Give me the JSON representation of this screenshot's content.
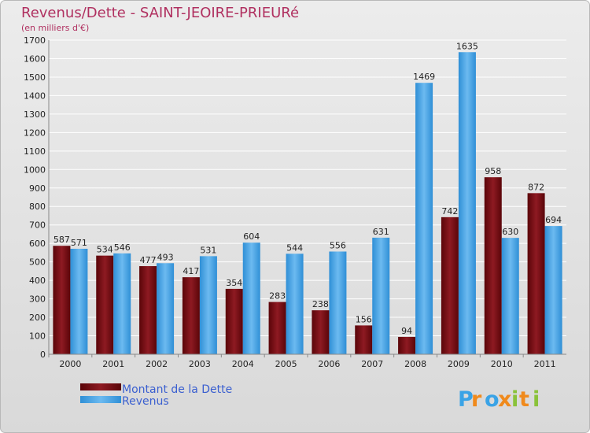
{
  "chart_data": {
    "type": "bar",
    "title": "Revenus/Dette - SAINT-JEOIRE-PRIEURé",
    "subtitle": "(en milliers d'€)",
    "categories": [
      "2000",
      "2001",
      "2002",
      "2003",
      "2004",
      "2005",
      "2006",
      "2007",
      "2008",
      "2009",
      "2010",
      "2011"
    ],
    "series": [
      {
        "name": "Montant de la Dette",
        "values": [
          587,
          534,
          477,
          417,
          354,
          283,
          238,
          156,
          94,
          742,
          958,
          872
        ],
        "color": "#7a0f16"
      },
      {
        "name": "Revenus",
        "values": [
          571,
          546,
          493,
          531,
          604,
          544,
          556,
          631,
          1469,
          1635,
          630,
          694
        ],
        "color": "#4aa3e0"
      }
    ],
    "ylim": [
      0,
      1700
    ],
    "yticks": [
      0,
      100,
      200,
      300,
      400,
      500,
      600,
      700,
      800,
      900,
      1000,
      1100,
      1200,
      1300,
      1400,
      1500,
      1600,
      1700
    ],
    "grid": true,
    "legend_position": "bottom-left",
    "background_color": "#e4e4e4",
    "grid_color": "#ffffff"
  },
  "logo": {
    "text": "Proxiti"
  }
}
